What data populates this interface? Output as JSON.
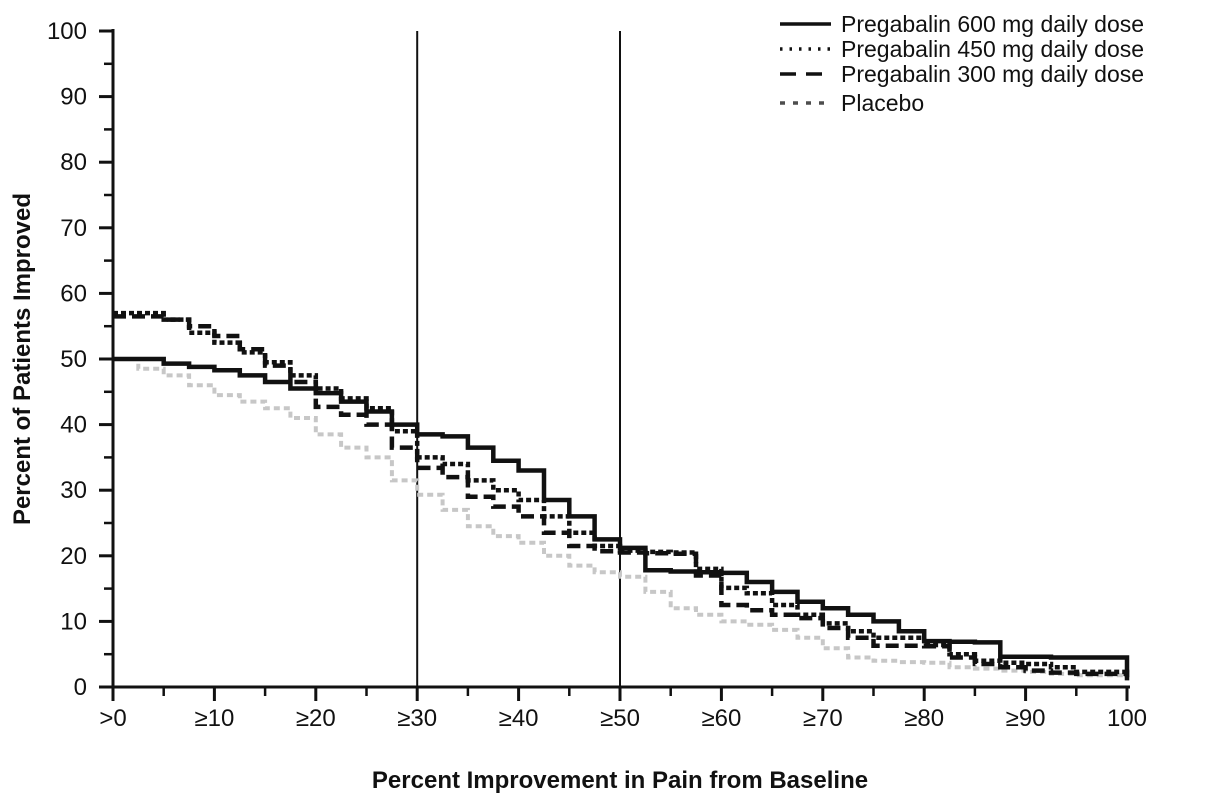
{
  "chart_data": {
    "type": "line",
    "subtype": "step-after-responder-curves",
    "title": "",
    "xlabel": "Percent Improvement in Pain from Baseline",
    "ylabel": "Percent of Patients Improved",
    "xlim": [
      0,
      100
    ],
    "ylim": [
      0,
      100
    ],
    "grid": false,
    "legend_position": "top-right",
    "x_tick_values": [
      0,
      10,
      20,
      30,
      40,
      50,
      60,
      70,
      80,
      90,
      100
    ],
    "x_tick_labels": [
      ">0",
      "≥10",
      "≥20",
      "≥30",
      "≥40",
      "≥50",
      "≥60",
      "≥70",
      "≥80",
      "≥90",
      "100"
    ],
    "y_tick_values": [
      0,
      10,
      20,
      30,
      40,
      50,
      60,
      70,
      80,
      90,
      100
    ],
    "minor_tick_step": 5,
    "reference_lines_x": [
      30,
      50
    ],
    "axis_color": "#111111",
    "x": [
      0,
      2.5,
      5,
      7.5,
      10,
      12.5,
      15,
      17.5,
      20,
      22.5,
      25,
      27.5,
      30,
      32.5,
      35,
      37.5,
      40,
      42.5,
      45,
      47.5,
      50,
      52.5,
      55,
      57.5,
      60,
      62.5,
      65,
      67.5,
      70,
      72.5,
      75,
      77.5,
      80,
      82.5,
      85,
      87.5,
      90,
      92.5,
      95,
      97.5,
      99.5,
      100
    ],
    "series": [
      {
        "name": "Pregabalin 600 mg daily dose",
        "line_style": "solid",
        "color": "#111111",
        "legend_color": "#111111",
        "values": [
          50,
          50,
          49.3,
          48.8,
          48.3,
          47.5,
          46.5,
          45.5,
          44.8,
          43.5,
          42,
          40,
          38.5,
          38.2,
          36.5,
          34.5,
          33,
          28.5,
          26,
          22.5,
          21.2,
          17.8,
          17.6,
          17.5,
          17.4,
          16,
          14.5,
          13,
          12,
          11,
          10,
          8.5,
          7,
          6.9,
          6.8,
          4.6,
          4.6,
          4.5,
          4.5,
          4.5,
          4.5,
          1
        ]
      },
      {
        "name": "Pregabalin 450 mg daily dose",
        "line_style": "dotted",
        "color": "#111111",
        "legend_color": "#111111",
        "values": [
          57,
          57,
          56,
          54,
          52.5,
          51,
          49.5,
          47.5,
          45.5,
          44,
          42.5,
          39,
          35,
          34,
          31.5,
          30,
          28.5,
          26,
          23.5,
          21.5,
          20.8,
          20.6,
          20.5,
          18,
          15.1,
          14.3,
          12.5,
          11,
          9.7,
          8.5,
          7.5,
          7.5,
          6.4,
          5,
          4,
          3.7,
          3.5,
          3,
          2.3,
          2.3,
          2.3,
          2
        ]
      },
      {
        "name": "Pregabalin 300 mg daily dose",
        "line_style": "dashed",
        "color": "#111111",
        "legend_color": "#111111",
        "values": [
          56.5,
          56.5,
          56,
          55,
          53.5,
          51.5,
          49,
          46.5,
          42.7,
          41.5,
          40,
          36.5,
          33.4,
          32,
          29,
          27.5,
          26,
          23.5,
          21.5,
          20.7,
          20.5,
          20.4,
          20.3,
          17,
          12.5,
          11.7,
          11,
          10.5,
          9,
          7.5,
          6.3,
          6.3,
          6.2,
          4.5,
          3.5,
          3,
          2.5,
          2.2,
          2,
          2,
          2,
          1.5
        ]
      },
      {
        "name": "Placebo",
        "line_style": "dotted-sparse",
        "color": "#c7c7c7",
        "legend_color": "#4d4d4d",
        "values": [
          50,
          48.5,
          47.5,
          46,
          44.5,
          43.5,
          42.5,
          41,
          38.5,
          36.5,
          35,
          31.5,
          29.3,
          27,
          24.5,
          23,
          22,
          20,
          18.5,
          17.5,
          16.8,
          14.5,
          12,
          11,
          10,
          9.5,
          8.7,
          7.5,
          5.9,
          4.5,
          4,
          3.8,
          3.7,
          3,
          2.8,
          2.5,
          2.3,
          2,
          1.8,
          1.8,
          1.8,
          1.5
        ]
      }
    ]
  }
}
